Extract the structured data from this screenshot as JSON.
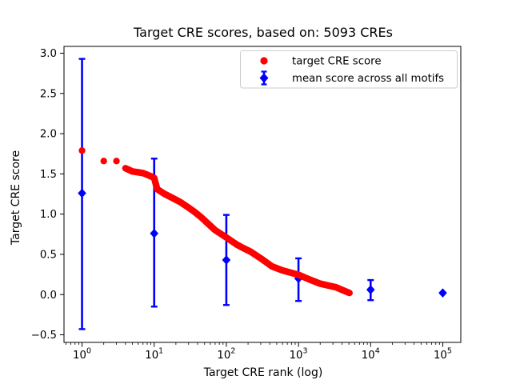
{
  "figure": {
    "background": "#ffffff",
    "red": "#ff0000",
    "blue": "#0000ff"
  },
  "chart_data": {
    "type": "scatter",
    "title": "Target CRE scores, based on: 5093 CREs",
    "xlabel": "Target CRE rank (log)",
    "ylabel": "Target CRE score",
    "x_scale": "log",
    "grid": false,
    "legend_position": "upper right",
    "xlim_log10": [
      -0.25,
      5.25
    ],
    "ylim": [
      -0.595,
      3.085
    ],
    "x_ticks": [
      1,
      10,
      100,
      1000,
      10000,
      100000
    ],
    "x_tick_exponents": [
      "0",
      "1",
      "2",
      "3",
      "4",
      "5"
    ],
    "x_tick_base": "10",
    "x_tick_labels": [
      "10^0",
      "10^1",
      "10^2",
      "10^3",
      "10^4",
      "10^5"
    ],
    "y_ticks": [
      3.0,
      2.5,
      2.0,
      1.5,
      1.0,
      0.5,
      0.0,
      -0.5
    ],
    "y_tick_labels": [
      "3.0",
      "2.5",
      "2.0",
      "1.5",
      "1.0",
      "0.5",
      "0.0",
      "−0.5"
    ],
    "series": [
      {
        "name": "target CRE score",
        "type": "scatter",
        "marker": "circle",
        "color": "#ff0000",
        "n_points_depicted": 5093,
        "points": [
          [
            1,
            1.79
          ],
          [
            2,
            1.66
          ],
          [
            3,
            1.66
          ],
          [
            4,
            1.57
          ],
          [
            5,
            1.53
          ],
          [
            6,
            1.52
          ],
          [
            7,
            1.51
          ],
          [
            8,
            1.49
          ],
          [
            9,
            1.47
          ],
          [
            10,
            1.45
          ],
          [
            11,
            1.31
          ],
          [
            14,
            1.25
          ],
          [
            18,
            1.2
          ],
          [
            23,
            1.15
          ],
          [
            30,
            1.08
          ],
          [
            36,
            1.03
          ],
          [
            45,
            0.96
          ],
          [
            56,
            0.88
          ],
          [
            70,
            0.8
          ],
          [
            100,
            0.71
          ],
          [
            140,
            0.62
          ],
          [
            170,
            0.58
          ],
          [
            220,
            0.53
          ],
          [
            300,
            0.45
          ],
          [
            430,
            0.35
          ],
          [
            600,
            0.3
          ],
          [
            1000,
            0.245
          ],
          [
            1400,
            0.19
          ],
          [
            2000,
            0.135
          ],
          [
            3300,
            0.09
          ],
          [
            4200,
            0.05
          ],
          [
            5093,
            0.02
          ]
        ]
      },
      {
        "name": "mean score across all motifs",
        "type": "errorbar",
        "marker": "diamond",
        "color": "#0000ff",
        "points": [
          {
            "rank": 1,
            "mean": 1.26,
            "lo": -0.43,
            "hi": 2.93
          },
          {
            "rank": 10,
            "mean": 0.76,
            "lo": -0.15,
            "hi": 1.69
          },
          {
            "rank": 100,
            "mean": 0.43,
            "lo": -0.13,
            "hi": 0.99
          },
          {
            "rank": 1000,
            "mean": 0.2,
            "lo": -0.08,
            "hi": 0.45
          },
          {
            "rank": 10000,
            "mean": 0.06,
            "lo": -0.07,
            "hi": 0.18
          },
          {
            "rank": 100000,
            "mean": 0.02,
            "lo": 0.02,
            "hi": 0.02
          }
        ]
      }
    ]
  }
}
